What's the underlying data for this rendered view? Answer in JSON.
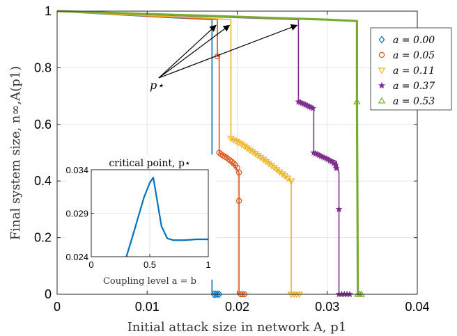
{
  "chart_data": [
    {
      "type": "line",
      "xlabel": "Initial attack size in network A, p1",
      "ylabel": "Final system size, n∞,A(p1)",
      "xlim": [
        0,
        0.04
      ],
      "ylim": [
        0,
        1
      ],
      "xticks": [
        "0",
        "0.01",
        "0.02",
        "0.03",
        "0.04"
      ],
      "yticks": [
        "0",
        "0.2",
        "0.4",
        "0.6",
        "0.8",
        "1"
      ],
      "grid": true,
      "legend_position": "top-right",
      "annotation": "p⋆",
      "annotation_targets": [
        [
          0.0178,
          0.96
        ],
        [
          0.0193,
          0.96
        ],
        [
          0.0268,
          0.96
        ]
      ],
      "series": [
        {
          "name": "a = 0.00",
          "color": "#0072BD",
          "marker": "diamond",
          "x": [
            0,
            0.004,
            0.008,
            0.012,
            0.016,
            0.0172,
            0.0172,
            0.0174,
            0.0176,
            0.0178,
            0.018
          ],
          "y": [
            1.0,
            0.992,
            0.985,
            0.978,
            0.972,
            0.97,
            0.0,
            0.0,
            0.0,
            0.0,
            0.0
          ],
          "marker_points": [
            [
              0.0172,
              0.1
            ],
            [
              0.0174,
              0
            ],
            [
              0.0176,
              0
            ],
            [
              0.0178,
              0
            ],
            [
              0.018,
              0
            ]
          ]
        },
        {
          "name": "a = 0.05",
          "color": "#D95319",
          "marker": "circle",
          "x": [
            0,
            0.004,
            0.008,
            0.012,
            0.016,
            0.0178,
            0.0178,
            0.018,
            0.018,
            0.0188,
            0.0196,
            0.0202,
            0.0202,
            0.0202,
            0.0204,
            0.0206,
            0.0208
          ],
          "y": [
            1.0,
            0.993,
            0.986,
            0.979,
            0.973,
            0.97,
            0.84,
            0.84,
            0.5,
            0.485,
            0.46,
            0.43,
            0.33,
            0.0,
            0.0,
            0.0,
            0.0
          ],
          "marker_points": [
            [
              0.0178,
              0.84
            ],
            [
              0.018,
              0.5
            ],
            [
              0.0182,
              0.495
            ],
            [
              0.0184,
              0.49
            ],
            [
              0.0186,
              0.487
            ],
            [
              0.0188,
              0.483
            ],
            [
              0.019,
              0.478
            ],
            [
              0.0192,
              0.473
            ],
            [
              0.0194,
              0.468
            ],
            [
              0.0196,
              0.462
            ],
            [
              0.0198,
              0.456
            ],
            [
              0.02,
              0.447
            ],
            [
              0.0202,
              0.43
            ],
            [
              0.0202,
              0.33
            ],
            [
              0.0204,
              0
            ],
            [
              0.0206,
              0
            ],
            [
              0.0208,
              0
            ]
          ]
        },
        {
          "name": "a = 0.11",
          "color": "#EDB120",
          "marker": "triangle-down",
          "x": [
            0,
            0.004,
            0.008,
            0.012,
            0.016,
            0.0193,
            0.0193,
            0.0205,
            0.022,
            0.024,
            0.026,
            0.026,
            0.0263,
            0.0266,
            0.0269
          ],
          "y": [
            1.0,
            0.993,
            0.987,
            0.981,
            0.976,
            0.97,
            0.55,
            0.535,
            0.5,
            0.455,
            0.4,
            0.0,
            0.0,
            0.0,
            0.0
          ],
          "marker_points": [
            [
              0.0193,
              0.55
            ],
            [
              0.0196,
              0.545
            ],
            [
              0.0199,
              0.54
            ],
            [
              0.0202,
              0.535
            ],
            [
              0.0205,
              0.53
            ],
            [
              0.0208,
              0.523
            ],
            [
              0.0211,
              0.516
            ],
            [
              0.0214,
              0.509
            ],
            [
              0.0217,
              0.503
            ],
            [
              0.022,
              0.497
            ],
            [
              0.0223,
              0.49
            ],
            [
              0.0226,
              0.483
            ],
            [
              0.0229,
              0.476
            ],
            [
              0.0232,
              0.469
            ],
            [
              0.0235,
              0.462
            ],
            [
              0.0238,
              0.455
            ],
            [
              0.0241,
              0.448
            ],
            [
              0.0244,
              0.44
            ],
            [
              0.0247,
              0.432
            ],
            [
              0.025,
              0.425
            ],
            [
              0.0253,
              0.418
            ],
            [
              0.0256,
              0.41
            ],
            [
              0.026,
              0.4
            ],
            [
              0.026,
              0
            ],
            [
              0.0263,
              0
            ],
            [
              0.0266,
              0
            ],
            [
              0.0269,
              0
            ]
          ]
        },
        {
          "name": "a = 0.37",
          "color": "#7E2F8E",
          "marker": "star",
          "x": [
            0,
            0.005,
            0.01,
            0.015,
            0.02,
            0.025,
            0.0268,
            0.0268,
            0.0285,
            0.0285,
            0.031,
            0.0313,
            0.0313,
            0.0315,
            0.032,
            0.0325
          ],
          "y": [
            1.0,
            0.994,
            0.988,
            0.982,
            0.977,
            0.972,
            0.97,
            0.68,
            0.655,
            0.5,
            0.47,
            0.43,
            0.0,
            0.0,
            0.0,
            0.0
          ],
          "marker_points": [
            [
              0.0268,
              0.68
            ],
            [
              0.027,
              0.678
            ],
            [
              0.0272,
              0.675
            ],
            [
              0.0274,
              0.672
            ],
            [
              0.0276,
              0.669
            ],
            [
              0.0278,
              0.666
            ],
            [
              0.028,
              0.663
            ],
            [
              0.0282,
              0.66
            ],
            [
              0.0284,
              0.657
            ],
            [
              0.0285,
              0.5
            ],
            [
              0.0287,
              0.497
            ],
            [
              0.0289,
              0.494
            ],
            [
              0.0291,
              0.491
            ],
            [
              0.0293,
              0.488
            ],
            [
              0.0295,
              0.485
            ],
            [
              0.0297,
              0.482
            ],
            [
              0.0299,
              0.479
            ],
            [
              0.0301,
              0.476
            ],
            [
              0.0303,
              0.472
            ],
            [
              0.0305,
              0.468
            ],
            [
              0.0307,
              0.463
            ],
            [
              0.0309,
              0.456
            ],
            [
              0.031,
              0.445
            ],
            [
              0.0313,
              0.3
            ],
            [
              0.0313,
              0
            ],
            [
              0.0316,
              0
            ],
            [
              0.0319,
              0
            ],
            [
              0.0322,
              0
            ],
            [
              0.0325,
              0
            ]
          ]
        },
        {
          "name": "a = 0.53",
          "color": "#77AC30",
          "marker": "triangle-up",
          "x": [
            0,
            0.005,
            0.01,
            0.015,
            0.02,
            0.025,
            0.03,
            0.0333,
            0.0333,
            0.0334,
            0.0336,
            0.0338
          ],
          "y": [
            1.0,
            0.995,
            0.99,
            0.985,
            0.98,
            0.975,
            0.97,
            0.965,
            0.68,
            0.0,
            0.0,
            0.0
          ],
          "marker_points": [
            [
              0.0333,
              0.68
            ],
            [
              0.0334,
              0
            ],
            [
              0.0336,
              0
            ],
            [
              0.0338,
              0
            ]
          ]
        }
      ]
    },
    {
      "type": "line",
      "title": "critical point, p⋆",
      "xlabel": "Coupling level a = b",
      "xlim": [
        0,
        1
      ],
      "ylim": [
        0.024,
        0.034
      ],
      "xticks": [
        "0",
        "0.5",
        "1"
      ],
      "yticks": [
        "0.024",
        "0.029",
        "0.034"
      ],
      "series": [
        {
          "color": "#0072BD",
          "x": [
            0.3,
            0.35,
            0.4,
            0.45,
            0.5,
            0.53,
            0.6,
            0.65,
            0.7,
            0.8,
            0.9,
            1.0
          ],
          "y": [
            0.024,
            0.0262,
            0.0285,
            0.0308,
            0.0325,
            0.0331,
            0.0275,
            0.0261,
            0.0259,
            0.0259,
            0.026,
            0.026
          ]
        }
      ]
    }
  ]
}
